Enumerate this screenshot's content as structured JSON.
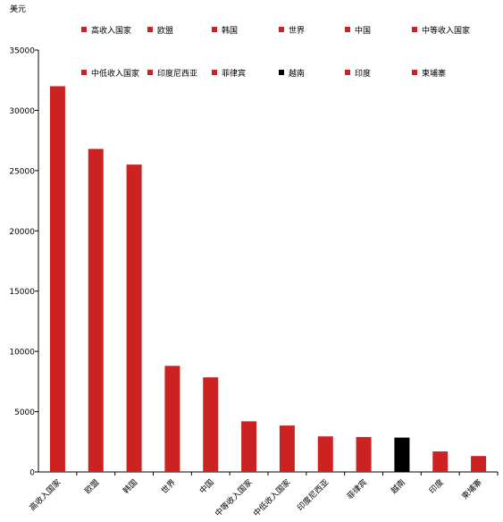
{
  "chart_data": {
    "type": "bar",
    "unit_label": "美元",
    "categories": [
      "高收入国家",
      "欧盟",
      "韩国",
      "世界",
      "中国",
      "中等收入国家",
      "中低收入国家",
      "印度尼西亚",
      "菲律宾",
      "越南",
      "印度",
      "柬埔寨"
    ],
    "values": [
      32000,
      26800,
      25500,
      8800,
      7850,
      4200,
      3850,
      2950,
      2900,
      2850,
      1700,
      1320
    ],
    "colors": [
      "#cc2222",
      "#cc2222",
      "#cc2222",
      "#cc2222",
      "#cc2222",
      "#cc2222",
      "#cc2222",
      "#cc2222",
      "#cc2222",
      "#000000",
      "#cc2222",
      "#cc2222"
    ],
    "ylim": [
      0,
      35000
    ],
    "yticks": [
      0,
      5000,
      10000,
      15000,
      20000,
      25000,
      30000,
      35000
    ],
    "grid": false,
    "legend_position": "top"
  }
}
